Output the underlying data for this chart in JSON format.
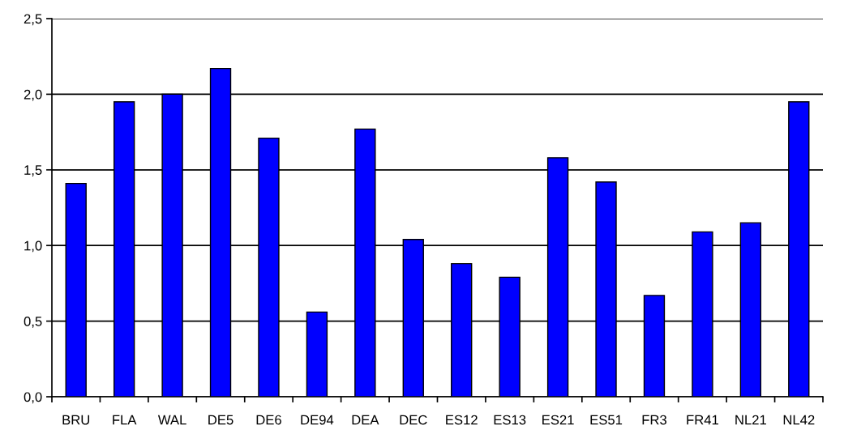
{
  "chart_data": {
    "type": "bar",
    "categories": [
      "BRU",
      "FLA",
      "WAL",
      "DE5",
      "DE6",
      "DE94",
      "DEA",
      "DEC",
      "ES12",
      "ES13",
      "ES21",
      "ES51",
      "FR3",
      "FR41",
      "NL21",
      "NL42"
    ],
    "values": [
      1.41,
      1.95,
      2.0,
      2.17,
      1.71,
      0.56,
      1.77,
      1.04,
      0.88,
      0.79,
      1.58,
      1.42,
      0.67,
      1.09,
      1.15,
      1.95
    ],
    "color": "#0000ff",
    "ylim": [
      0,
      2.5
    ],
    "yticks": [
      {
        "value": 0,
        "label": "0,0"
      },
      {
        "value": 0.5,
        "label": "0,5"
      },
      {
        "value": 1.0,
        "label": "1,0"
      },
      {
        "value": 1.5,
        "label": "1,5"
      },
      {
        "value": 2.0,
        "label": "2,0"
      },
      {
        "value": 2.5,
        "label": "2,5"
      }
    ],
    "grid": "y"
  }
}
